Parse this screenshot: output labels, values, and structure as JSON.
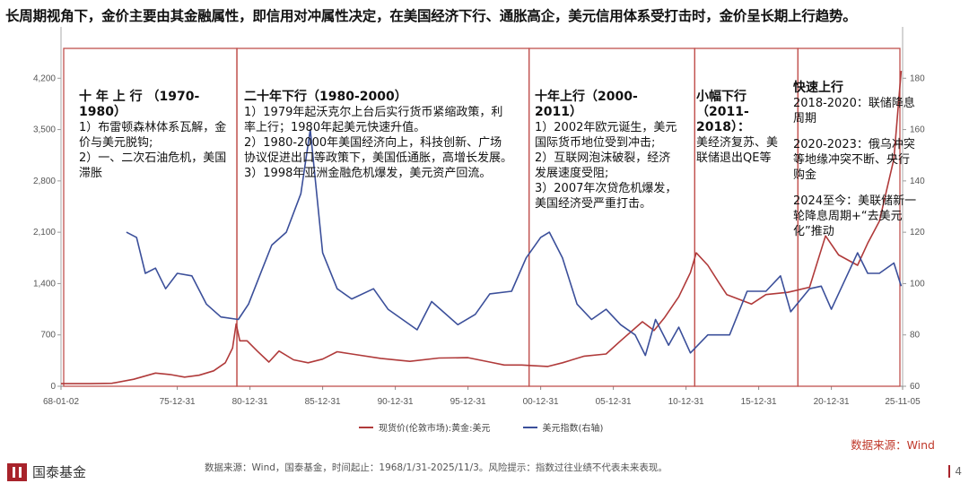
{
  "headline": "长周期视角下，金价主要由其金融属性，即信用对冲属性决定，在美国经济下行、通胀高企，美元信用体系受打击时，金价呈长期上行趋势。",
  "annotations": [
    {
      "title": "十 年 上 行 （1970-1980）",
      "lines": [
        "1）布雷顿森林体系瓦解，金价与美元脱钩;",
        "2）一、二次石油危机，美国滞胀"
      ]
    },
    {
      "title": "二十年下行（1980-2000）",
      "lines": [
        "1）1979年起沃克尔上台后实行货币紧缩政策，利率上行；1980年起美元快速升值。",
        "2）1980-2000年美国经济向上，科技创新、广场协议促进出口等政策下，美国低通胀，高增长发展。",
        "3）1998年亚洲金融危机爆发，美元资产回流。"
      ]
    },
    {
      "title": "十年上行（2000-2011）",
      "lines": [
        "1）2002年欧元诞生，美元国际货币地位受到冲击;",
        "2）互联网泡沫破裂，经济发展速度受阻;",
        "3）2007年次贷危机爆发，美国经济受严重打击。"
      ]
    },
    {
      "title": "小幅下行（2011-2018）：",
      "lines": [
        "美经济复苏、美联储退出QE等"
      ]
    },
    {
      "title": "快速上行",
      "lines": [
        "2018-2020：联储降息周期",
        "2020-2023：俄乌冲突等地缘冲突不断、央行购金",
        "2024至今：美联储新一轮降息周期+“去美元化”推动"
      ]
    }
  ],
  "legend": {
    "gold": "现货价(伦敦市场):黄金:美元",
    "dxy": "美元指数(右轴)"
  },
  "source_right": "数据来源：Wind",
  "footer": "数据来源：Wind，国泰基金，时间起止：1968/1/31-2025/11/3。风险提示：指数过往业绩不代表未来表现。",
  "logo": "国泰基金",
  "page_number": "4",
  "colors": {
    "gold": "#b03a3a",
    "dxy": "#3b4f9a",
    "box": "#c0504d"
  },
  "chart_data": {
    "type": "line",
    "x_ticks": [
      "68-01-02",
      "75-12-31",
      "80-12-31",
      "85-12-31",
      "90-12-31",
      "95-12-31",
      "00-12-31",
      "05-12-31",
      "10-12-31",
      "15-12-31",
      "20-12-31",
      "25-11-05"
    ],
    "y_left_ticks": [
      0,
      700,
      1400,
      2100,
      2800,
      3500,
      4200
    ],
    "y_right_ticks": [
      60,
      80,
      100,
      120,
      140,
      160,
      180
    ],
    "ylim_left": [
      0,
      4900
    ],
    "ylim_right": [
      60,
      200
    ],
    "period_boundaries": [
      1968.0,
      1980.1,
      2000.2,
      2011.6,
      2018.7,
      2025.9
    ],
    "series": [
      {
        "name": "现货价(伦敦市场):黄金:美元",
        "axis": "left",
        "x": [
          1968,
          1970,
          1971.5,
          1973,
          1974.5,
          1975.5,
          1976.5,
          1977.5,
          1978.5,
          1979.3,
          1979.8,
          1980.05,
          1980.3,
          1980.8,
          1981.5,
          1982.3,
          1983,
          1984,
          1985,
          1986,
          1987,
          1988,
          1990,
          1992,
          1994,
          1996,
          1997.5,
          1998.5,
          1999.7,
          2000.5,
          2001.5,
          2002.5,
          2004,
          2005.5,
          2006.5,
          2008,
          2008.8,
          2009.5,
          2010.5,
          2011.3,
          2011.7,
          2012.5,
          2013.3,
          2013.8,
          2015.5,
          2016.5,
          2018,
          2019.5,
          2020.6,
          2021.5,
          2022.8,
          2023.5,
          2024.3,
          2025.3,
          2025.8
        ],
        "values": [
          35,
          36,
          40,
          95,
          180,
          160,
          125,
          150,
          210,
          320,
          520,
          850,
          620,
          620,
          480,
          330,
          480,
          360,
          320,
          370,
          470,
          440,
          380,
          340,
          385,
          390,
          330,
          290,
          290,
          280,
          270,
          320,
          410,
          440,
          620,
          880,
          760,
          930,
          1220,
          1550,
          1820,
          1650,
          1400,
          1250,
          1120,
          1250,
          1280,
          1350,
          2050,
          1790,
          1650,
          1950,
          2250,
          3100,
          4300
        ]
      },
      {
        "name": "美元指数(右轴)",
        "axis": "right",
        "x": [
          1972.5,
          1973.2,
          1973.8,
          1974.5,
          1975.2,
          1976,
          1977,
          1978,
          1979,
          1980.2,
          1980.9,
          1981.8,
          1982.5,
          1983.5,
          1984.5,
          1985.15,
          1986,
          1987,
          1988,
          1989.5,
          1990.5,
          1992.5,
          1993.5,
          1995.3,
          1996.5,
          1997.5,
          1999,
          2000,
          2001,
          2001.6,
          2002.5,
          2003.5,
          2004.5,
          2005.5,
          2006.5,
          2007.5,
          2008.2,
          2008.9,
          2009.8,
          2010.5,
          2011.3,
          2012.5,
          2014,
          2015.2,
          2016.5,
          2017.5,
          2018.2,
          2019.5,
          2020.3,
          2021,
          2022.8,
          2023.5,
          2024.3,
          2025.3,
          2025.8
        ],
        "values": [
          120,
          118,
          104,
          106,
          98,
          104,
          103,
          92,
          87,
          86,
          92,
          105,
          115,
          120,
          135,
          160,
          112,
          98,
          94,
          98,
          90,
          82,
          93,
          84,
          88,
          96,
          97,
          110,
          118,
          120,
          110,
          92,
          86,
          90,
          84,
          80,
          72,
          86,
          76,
          83,
          73,
          80,
          80,
          97,
          97,
          103,
          89,
          98,
          99,
          90,
          112,
          104,
          104,
          108,
          99
        ]
      }
    ]
  }
}
